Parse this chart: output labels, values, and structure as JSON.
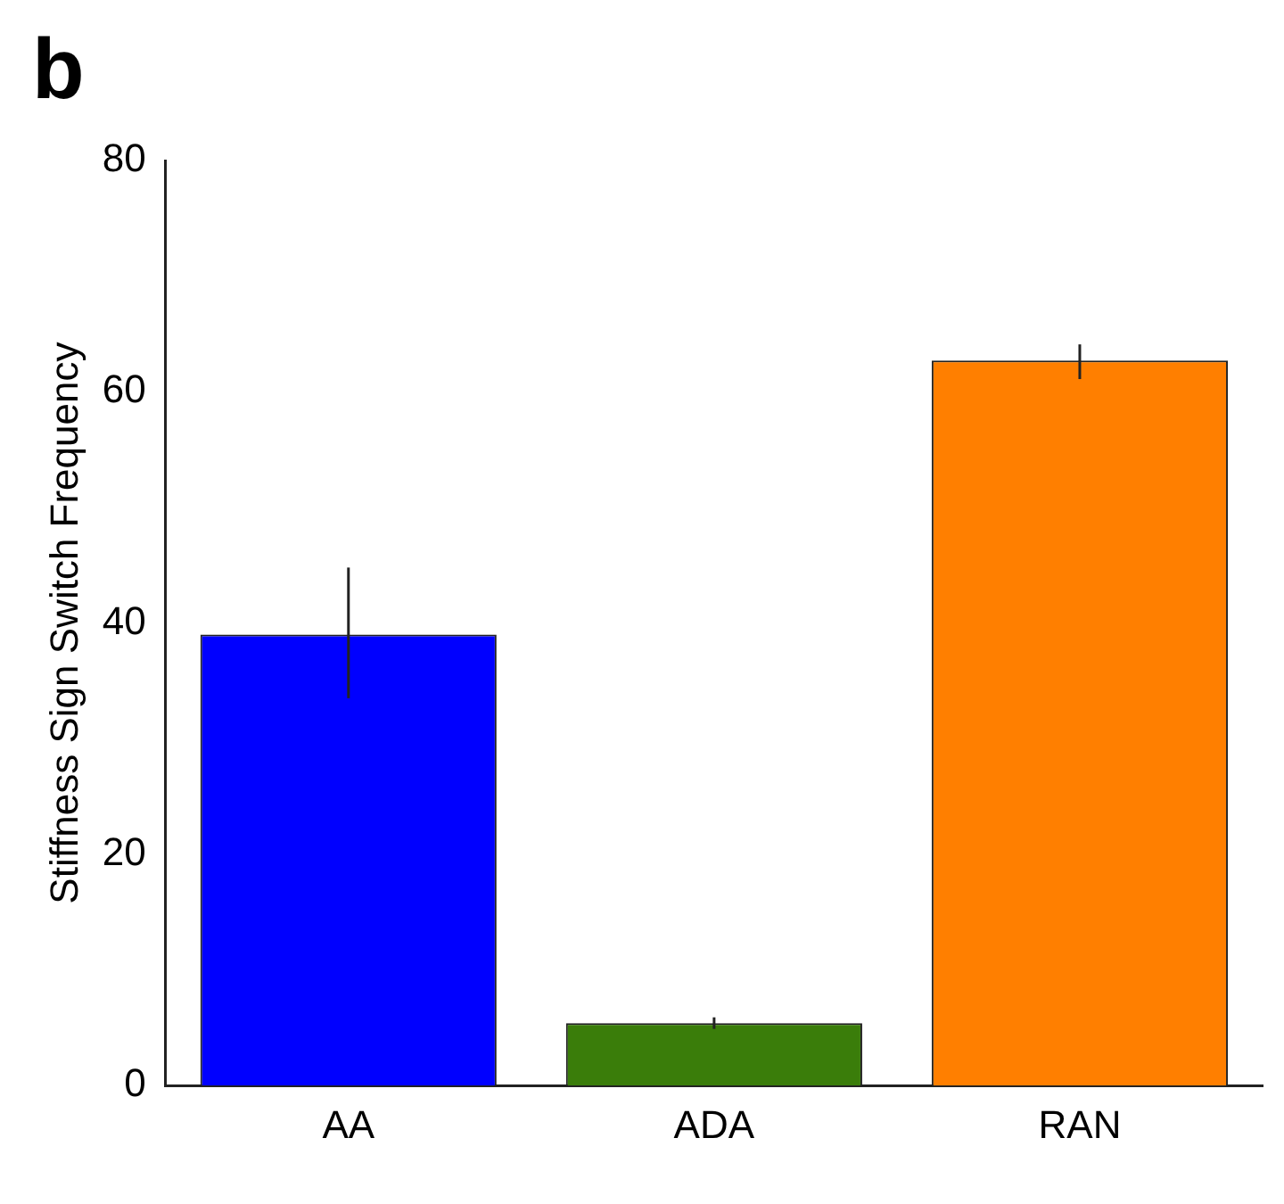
{
  "chart_data": {
    "type": "bar",
    "annotations": [
      "b"
    ],
    "ylabel": "Stiffness Sign Switch Frequency",
    "categories": [
      "AA",
      "ADA",
      "RAN"
    ],
    "values": [
      39,
      5.4,
      62.7
    ],
    "colors": [
      "#0000ff",
      "#3a7d0a",
      "#ff7f00"
    ],
    "errors": [
      [
        33.5,
        44.8
      ],
      0.5,
      [
        61.1,
        64.1
      ]
    ],
    "ylim": [
      0,
      80
    ],
    "yticks": [
      0,
      20,
      40,
      60,
      80
    ],
    "grid": false,
    "legend": false
  }
}
